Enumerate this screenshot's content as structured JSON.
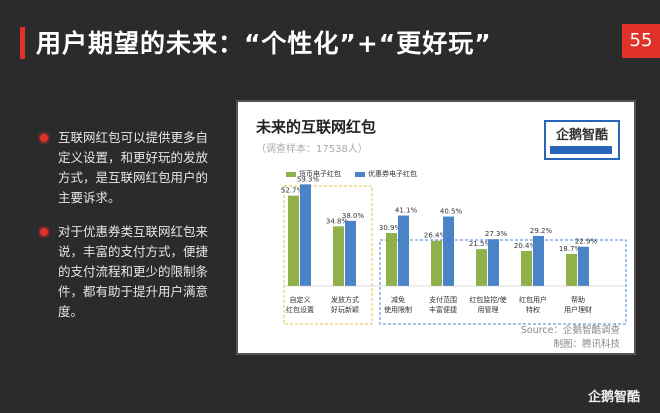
{
  "slide": {
    "title": "用户期望的未来：“个性化”+“更好玩”",
    "page_number": "55",
    "accent_color": "#e0322b",
    "bullets": [
      "互联网红包可以提供更多自定义设置，和更好玩的发放方式，是互联网红包用户的主要诉求。",
      "对于优惠券类互联网红包来说，丰富的支付方式，便捷的支付流程和更少的限制条件，都有助于提升用户满意度。"
    ],
    "brand": "企鹅智酷"
  },
  "chart_data": {
    "type": "bar",
    "title": "未来的互联网红包",
    "subtitle": "（调查样本：17538人）",
    "categories": [
      "自定义红包设置",
      "发放方式好玩新颖",
      "减免使用限制",
      "支付范围丰富便捷",
      "红包监控/使用管理",
      "红包用户特权",
      "帮助用户理财"
    ],
    "category_lines": [
      [
        "自定义",
        "红包设置"
      ],
      [
        "发放方式",
        "好玩新颖"
      ],
      [
        "减免",
        "使用限制"
      ],
      [
        "支付范围",
        "丰富便捷"
      ],
      [
        "红包监控/使",
        "用管理"
      ],
      [
        "红包用户",
        "特权"
      ],
      [
        "帮助",
        "用户理财"
      ]
    ],
    "series": [
      {
        "name": "货币电子红包",
        "color": "#8fb04a",
        "values": [
          52.7,
          34.8,
          30.9,
          26.4,
          21.5,
          20.4,
          18.7
        ]
      },
      {
        "name": "优惠券电子红包",
        "color": "#4a84c7",
        "values": [
          59.3,
          38.0,
          41.1,
          40.5,
          27.3,
          29.2,
          22.9
        ]
      }
    ],
    "value_labels": [
      [
        "52.7%",
        "34.8%",
        "30.9%",
        "26.4%",
        "21.5%",
        "20.4%",
        "18.7%"
      ],
      [
        "59.3%",
        "38.0%",
        "41.1%",
        "40.5%",
        "27.3%",
        "29.2%",
        "22.9%"
      ]
    ],
    "ylim": [
      0,
      70
    ],
    "legend_position": "top-left",
    "grid": false,
    "groups": [
      {
        "border_color": "#d8c830",
        "categories": [
          0,
          1
        ]
      },
      {
        "border_color": "#4a84c7",
        "categories": [
          2,
          3,
          4,
          5,
          6
        ]
      }
    ],
    "logo_text": "企鹅智酷",
    "source_lines": [
      "Source：企鹅智酷调查",
      "制图：腾讯科技"
    ]
  }
}
